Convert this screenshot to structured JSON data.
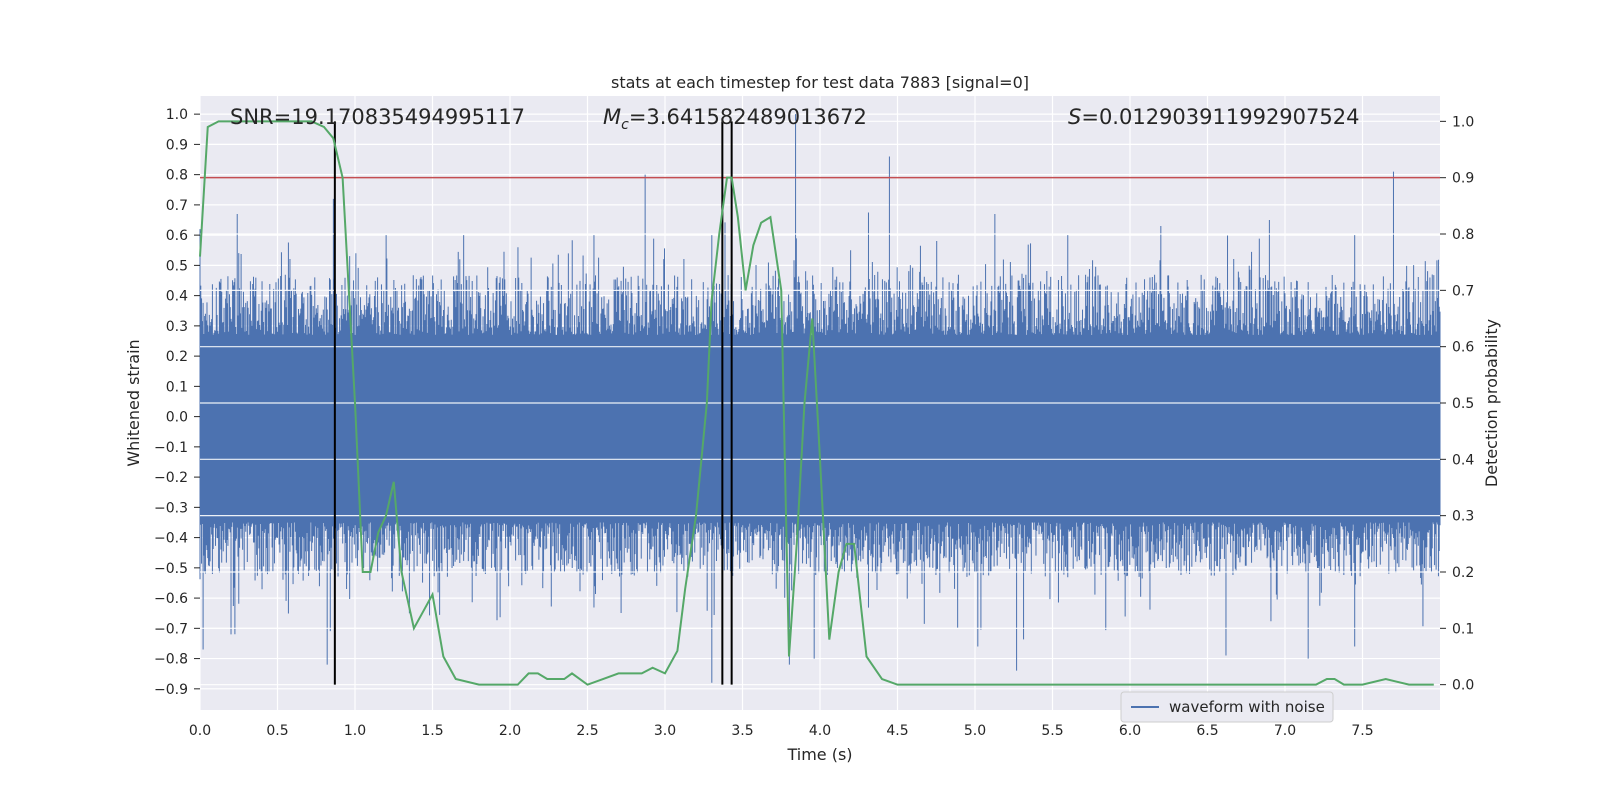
{
  "chart_data": {
    "type": "line",
    "title": "stats at each timestep for test data 7883 [signal=0]",
    "xlabel": "Time (s)",
    "ylabel": "Whitened strain",
    "y2label": "Detection probability",
    "xlim": [
      0.0,
      8.0
    ],
    "ylim": [
      -0.97,
      1.06
    ],
    "y2lim": [
      -0.045,
      1.045
    ],
    "xticks": [
      "0.0",
      "0.5",
      "1.0",
      "1.5",
      "2.0",
      "2.5",
      "3.0",
      "3.5",
      "4.0",
      "4.5",
      "5.0",
      "5.5",
      "6.0",
      "6.5",
      "7.0",
      "7.5"
    ],
    "yticks": [
      "-0.9",
      "-0.8",
      "-0.7",
      "-0.6",
      "-0.5",
      "-0.4",
      "-0.3",
      "-0.2",
      "-0.1",
      "0.0",
      "0.1",
      "0.2",
      "0.3",
      "0.4",
      "0.5",
      "0.6",
      "0.7",
      "0.8",
      "0.9",
      "1.0"
    ],
    "y2ticks": [
      "0.0",
      "0.1",
      "0.2",
      "0.3",
      "0.4",
      "0.5",
      "0.6",
      "0.7",
      "0.8",
      "0.9",
      "1.0"
    ],
    "grid": true,
    "legend": {
      "placement": "lower-right",
      "entries": [
        "waveform with noise"
      ]
    },
    "annotations": {
      "snr": "SNR=19.170835494995117",
      "mc": "=3.641582489013672",
      "s": "=0.012903911992907524"
    },
    "threshold": 0.9,
    "vlines": [
      0.87,
      3.37,
      3.43
    ],
    "series": [
      {
        "name": "waveform with noise",
        "color": "#4c72b0",
        "note_band": [
          -0.33,
          0.25
        ],
        "peaks_pos": [
          [
            0.0,
            0.62
          ],
          [
            0.24,
            0.67
          ],
          [
            0.86,
            0.72
          ],
          [
            1.2,
            0.6
          ],
          [
            1.7,
            0.6
          ],
          [
            2.05,
            0.56
          ],
          [
            2.87,
            0.8
          ],
          [
            3.3,
            0.6
          ],
          [
            3.84,
            1.0
          ],
          [
            4.2,
            0.55
          ],
          [
            4.45,
            0.86
          ],
          [
            5.13,
            0.67
          ],
          [
            5.6,
            0.6
          ],
          [
            6.2,
            0.63
          ],
          [
            6.9,
            0.65
          ],
          [
            7.45,
            0.6
          ],
          [
            7.7,
            0.81
          ],
          [
            7.95,
            0.47
          ]
        ],
        "peaks_neg": [
          [
            0.02,
            -0.77
          ],
          [
            0.2,
            -0.72
          ],
          [
            0.82,
            -0.82
          ],
          [
            1.35,
            -0.65
          ],
          [
            3.3,
            -0.88
          ],
          [
            3.8,
            -0.82
          ],
          [
            3.96,
            -0.8
          ],
          [
            5.02,
            -0.76
          ],
          [
            5.27,
            -0.84
          ],
          [
            6.62,
            -0.79
          ],
          [
            7.15,
            -0.8
          ],
          [
            7.45,
            -0.76
          ]
        ]
      },
      {
        "name": "",
        "color": "#55a868",
        "axis": "right",
        "x": [
          0.0,
          0.05,
          0.12,
          0.2,
          0.4,
          0.6,
          0.72,
          0.8,
          0.86,
          0.92,
          1.0,
          1.05,
          1.1,
          1.15,
          1.2,
          1.25,
          1.3,
          1.38,
          1.44,
          1.5,
          1.57,
          1.65,
          1.8,
          1.95,
          2.05,
          2.12,
          2.18,
          2.24,
          2.3,
          2.35,
          2.4,
          2.5,
          2.6,
          2.7,
          2.75,
          2.85,
          2.92,
          3.0,
          3.08,
          3.13,
          3.2,
          3.27,
          3.3,
          3.35,
          3.4,
          3.43,
          3.47,
          3.52,
          3.57,
          3.62,
          3.68,
          3.75,
          3.8,
          3.85,
          3.9,
          3.95,
          4.0,
          4.06,
          4.12,
          4.17,
          4.22,
          4.3,
          4.4,
          4.5,
          5.0,
          6.0,
          6.5,
          7.0,
          7.2,
          7.27,
          7.32,
          7.38,
          7.5,
          7.65,
          7.8,
          7.9,
          7.96
        ],
        "y": [
          0.76,
          0.99,
          1.0,
          1.0,
          1.0,
          1.0,
          1.0,
          0.99,
          0.97,
          0.9,
          0.5,
          0.2,
          0.2,
          0.27,
          0.3,
          0.36,
          0.2,
          0.1,
          0.13,
          0.16,
          0.05,
          0.01,
          0.0,
          0.0,
          0.0,
          0.02,
          0.02,
          0.01,
          0.01,
          0.01,
          0.02,
          0.0,
          0.01,
          0.02,
          0.02,
          0.02,
          0.03,
          0.02,
          0.06,
          0.17,
          0.3,
          0.5,
          0.68,
          0.8,
          0.9,
          0.9,
          0.83,
          0.7,
          0.78,
          0.82,
          0.83,
          0.7,
          0.05,
          0.25,
          0.5,
          0.65,
          0.4,
          0.08,
          0.2,
          0.25,
          0.25,
          0.05,
          0.01,
          0.0,
          0.0,
          0.0,
          0.0,
          0.0,
          0.0,
          0.01,
          0.01,
          0.0,
          0.0,
          0.01,
          0.0,
          0.0,
          0.0
        ]
      }
    ]
  }
}
